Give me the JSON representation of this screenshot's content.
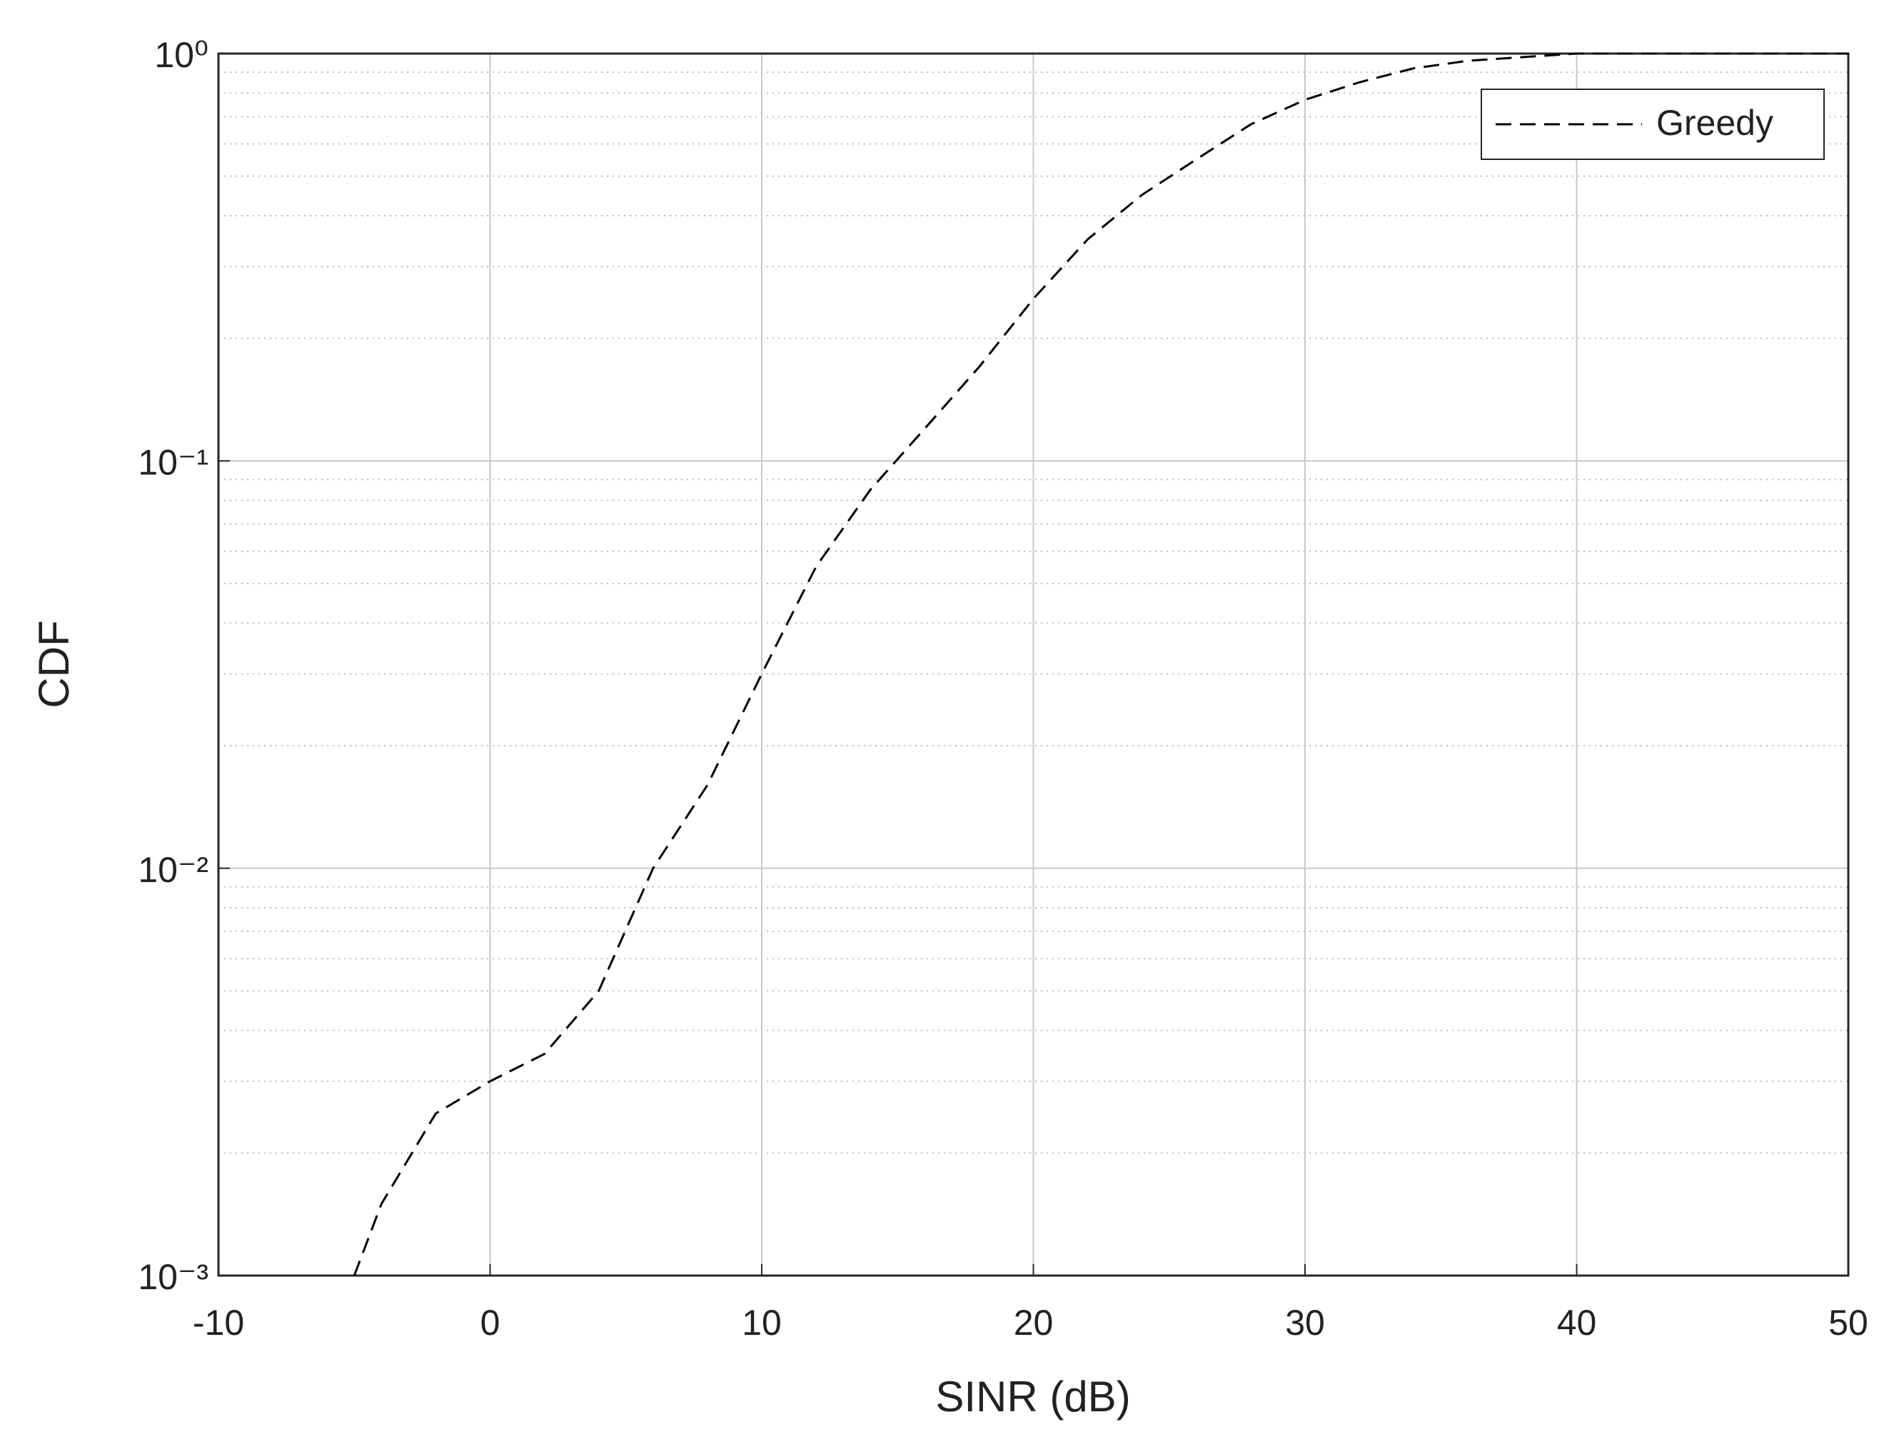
{
  "chart_data": {
    "type": "line",
    "xlabel": "SINR (dB)",
    "ylabel": "CDF",
    "x": [
      -5,
      -4,
      -2,
      0,
      2,
      4,
      6,
      8,
      10,
      12,
      14,
      16,
      18,
      20,
      22,
      24,
      26,
      28,
      30,
      32,
      34,
      36,
      38,
      40,
      45,
      50
    ],
    "series": [
      {
        "name": "Greedy",
        "color": "#000000",
        "values": [
          0.001,
          0.0015,
          0.0025,
          0.003,
          0.0035,
          0.005,
          0.01,
          0.016,
          0.03,
          0.055,
          0.085,
          0.12,
          0.17,
          0.25,
          0.35,
          0.45,
          0.55,
          0.67,
          0.77,
          0.85,
          0.92,
          0.96,
          0.98,
          1.0,
          1.0,
          1.0
        ]
      }
    ],
    "xlim": [
      -10,
      50
    ],
    "xticks": [
      -10,
      0,
      10,
      20,
      30,
      40,
      50
    ],
    "ylim": [
      0.001,
      1
    ],
    "yticks": [
      {
        "value": 0.001,
        "label": "10⁻³"
      },
      {
        "value": 0.01,
        "label": "10⁻²"
      },
      {
        "value": 0.1,
        "label": "10⁻¹"
      },
      {
        "value": 1,
        "label": "10⁰"
      }
    ],
    "ylog": true,
    "grid": true,
    "minor_grid": true,
    "legend": "upper right",
    "line_style": "dashed"
  }
}
